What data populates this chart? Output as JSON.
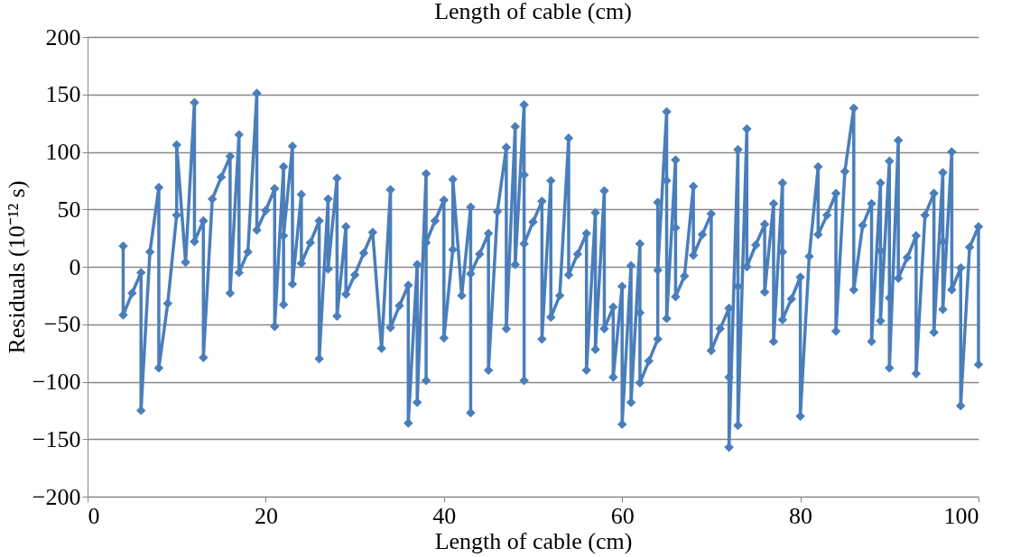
{
  "chart_data": {
    "type": "line",
    "title": "Length of cable (cm)",
    "xlabel": "Length of cable (cm)",
    "ylabel": "Residuals  (10⁻¹² s)",
    "x": [
      4,
      4,
      5,
      6,
      6,
      7,
      8,
      8,
      9,
      10,
      10,
      11,
      12,
      12,
      13,
      13,
      14,
      15,
      16,
      16,
      17,
      17,
      18,
      19,
      19,
      20,
      21,
      21,
      22,
      22,
      22,
      23,
      23,
      24,
      24,
      25,
      26,
      26,
      27,
      27,
      28,
      28,
      29,
      29,
      30,
      31,
      32,
      33,
      34,
      34,
      35,
      36,
      36,
      37,
      37,
      38,
      38,
      38,
      39,
      40,
      40,
      41,
      41,
      42,
      43,
      43,
      43,
      44,
      45,
      45,
      46,
      47,
      47,
      48,
      48,
      49,
      49,
      49,
      49,
      50,
      51,
      51,
      52,
      52,
      53,
      54,
      54,
      55,
      56,
      56,
      57,
      57,
      58,
      58,
      59,
      59,
      60,
      60,
      61,
      61,
      62,
      62,
      62,
      63,
      64,
      64,
      64,
      65,
      65,
      65,
      66,
      66,
      66,
      67,
      68,
      68,
      69,
      70,
      70,
      71,
      72,
      72,
      72,
      73,
      73,
      73,
      74,
      74,
      75,
      76,
      76,
      77,
      77,
      78,
      78,
      78,
      79,
      80,
      80,
      81,
      82,
      82,
      83,
      84,
      84,
      85,
      86,
      86,
      87,
      88,
      88,
      89,
      89,
      89,
      90,
      90,
      90,
      91,
      91,
      92,
      93,
      93,
      94,
      95,
      95,
      96,
      96,
      96,
      97,
      97,
      98,
      98,
      99,
      100,
      100
    ],
    "series": [
      {
        "color": "#4a7ebb",
        "values": [
          18,
          -42,
          -23,
          -5,
          -125,
          13,
          69,
          -88,
          -32,
          45,
          106,
          4,
          143,
          22,
          40,
          -79,
          59,
          78,
          96,
          -23,
          115,
          -5,
          13,
          151,
          32,
          49,
          68,
          -52,
          87,
          -33,
          27,
          105,
          -15,
          63,
          3,
          21,
          40,
          -80,
          59,
          -2,
          77,
          -43,
          35,
          -24,
          -7,
          12,
          30,
          -71,
          67,
          -53,
          -34,
          -16,
          -136,
          2,
          -118,
          81,
          -99,
          21,
          40,
          58,
          -62,
          15,
          76,
          -25,
          52,
          -127,
          -6,
          11,
          29,
          -90,
          48,
          104,
          -54,
          122,
          2,
          141,
          80,
          -99,
          20,
          39,
          57,
          -63,
          75,
          -44,
          -25,
          112,
          -7,
          11,
          29,
          -90,
          47,
          -72,
          66,
          -54,
          -35,
          -96,
          -17,
          -137,
          1,
          -118,
          20,
          -40,
          -101,
          -82,
          -63,
          56,
          -3,
          135,
          75,
          -45,
          93,
          34,
          -26,
          -8,
          70,
          10,
          28,
          46,
          -73,
          -54,
          -36,
          -96,
          -157,
          102,
          -17,
          -138,
          120,
          0,
          19,
          37,
          -22,
          55,
          -65,
          73,
          13,
          -46,
          -28,
          -9,
          -130,
          9,
          87,
          28,
          45,
          64,
          -56,
          83,
          138,
          -20,
          36,
          55,
          -65,
          73,
          14,
          -47,
          92,
          -27,
          -88,
          110,
          -10,
          8,
          27,
          -93,
          45,
          64,
          -57,
          82,
          22,
          -37,
          100,
          -20,
          -1,
          -121,
          17,
          35,
          -85
        ]
      }
    ],
    "xlim": [
      0,
      100
    ],
    "xticks": [
      0,
      20,
      40,
      60,
      80,
      100
    ],
    "ylim": [
      -200,
      200
    ],
    "yticks": [
      -200,
      -150,
      -100,
      -50,
      0,
      50,
      100,
      150,
      200
    ],
    "grid": "y",
    "marker": "diamond",
    "line_style": "solid"
  }
}
